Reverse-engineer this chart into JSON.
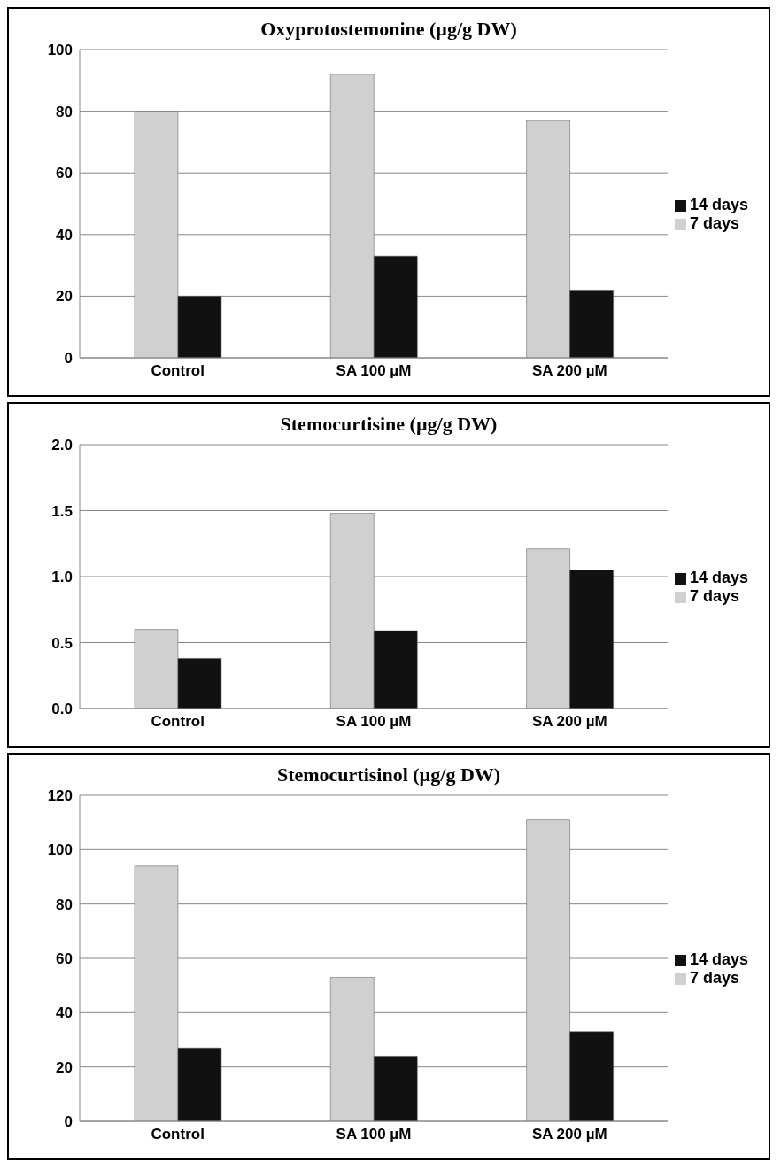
{
  "chart_data": [
    {
      "type": "bar",
      "title": "Oxyprotostemonine (µg/g DW)",
      "categories": [
        "Control",
        "SA 100  µM",
        "SA 200  µM"
      ],
      "series": [
        {
          "name": "7 days",
          "color": "#d0d0d0",
          "values": [
            80,
            92,
            77
          ]
        },
        {
          "name": "14 days",
          "color": "#111111",
          "values": [
            20,
            33,
            22
          ]
        }
      ],
      "ylim": [
        0,
        100
      ],
      "yticks": [
        0,
        20,
        40,
        60,
        80,
        100
      ],
      "grid": "y",
      "legend": "right"
    },
    {
      "type": "bar",
      "title": "Stemocurtisine (µg/g DW)",
      "categories": [
        "Control",
        "SA 100  µM",
        "SA 200  µM"
      ],
      "series": [
        {
          "name": "7 days",
          "color": "#d0d0d0",
          "values": [
            0.6,
            1.48,
            1.21
          ]
        },
        {
          "name": "14 days",
          "color": "#111111",
          "values": [
            0.38,
            0.59,
            1.05
          ]
        }
      ],
      "ylim": [
        0,
        2
      ],
      "yticks": [
        {
          "value": 0,
          "label": "0.0"
        },
        {
          "value": 0.5,
          "label": "0.5"
        },
        {
          "value": 1,
          "label": "1.0"
        },
        {
          "value": 1.5,
          "label": "1.5"
        },
        {
          "value": 2,
          "label": "2.0"
        }
      ],
      "grid": "y",
      "legend": "right"
    },
    {
      "type": "bar",
      "title": "Stemocurtisinol (µg/g DW)",
      "categories": [
        "Control",
        "SA 100  µM",
        "SA 200  µM"
      ],
      "series": [
        {
          "name": "7 days",
          "color": "#d0d0d0",
          "values": [
            94,
            53,
            111
          ]
        },
        {
          "name": "14 days",
          "color": "#111111",
          "values": [
            27,
            24,
            33
          ]
        }
      ],
      "ylim": [
        0,
        120
      ],
      "yticks": [
        0,
        20,
        40,
        60,
        80,
        100,
        120
      ],
      "grid": "y",
      "legend": "right"
    }
  ]
}
